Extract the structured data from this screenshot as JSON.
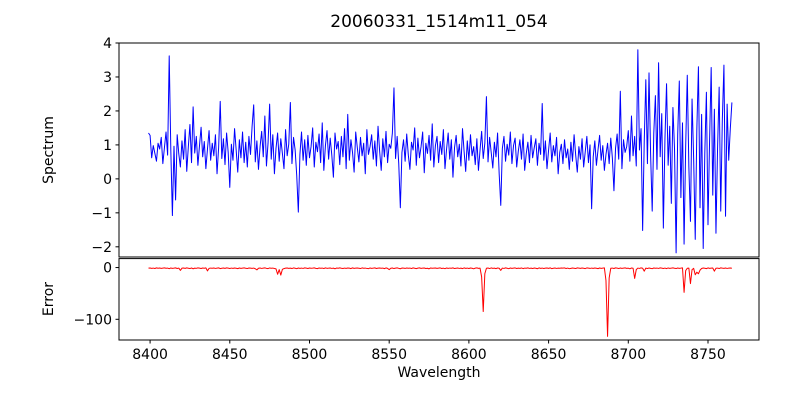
{
  "figure": {
    "title": "20060331_1514m11_054",
    "xlabel": "Wavelength",
    "background": "#ffffff",
    "axis_color": "#000000"
  },
  "chart_data": [
    {
      "type": "line",
      "series_name": "spectrum",
      "ylabel": "Spectrum",
      "color": "#0000ff",
      "xlim": [
        8380.5,
        8782.0
      ],
      "ylim": [
        -2.3,
        4.0
      ],
      "grid": false,
      "legend": null,
      "yticks": [
        {
          "v": 4,
          "label": "4"
        },
        {
          "v": 3,
          "label": "3"
        },
        {
          "v": 2,
          "label": "2"
        },
        {
          "v": 1,
          "label": "1"
        },
        {
          "v": 0,
          "label": "0"
        },
        {
          "v": -1,
          "label": "−1"
        },
        {
          "v": -2,
          "label": "−2"
        }
      ],
      "xticks": [],
      "x_start": 8399,
      "x_step": 1,
      "values": [
        1.35,
        1.28,
        0.62,
        0.98,
        0.75,
        0.52,
        1.05,
        0.88,
        1.22,
        0.45,
        0.92,
        1.38,
        0.7,
        3.62,
        0.85,
        -1.08,
        0.96,
        -0.62,
        1.3,
        0.74,
        0.35,
        1.12,
        0.58,
        1.45,
        0.22,
        0.95,
        1.6,
        0.48,
        2.12,
        0.76,
        1.25,
        0.4,
        0.98,
        1.52,
        0.65,
        1.1,
        0.3,
        0.88,
        1.42,
        0.55,
        1.05,
        0.68,
        1.3,
        0.15,
        0.92,
        2.28,
        0.6,
        1.18,
        0.42,
        1.35,
        0.78,
        -0.25,
        1.02,
        0.55,
        1.48,
        0.85,
        0.2,
        1.15,
        0.62,
        1.38,
        0.48,
        1.08,
        0.35,
        1.25,
        0.72,
        1.55,
        2.18,
        0.5,
        1.12,
        0.28,
        0.95,
        1.4,
        0.65,
        1.85,
        0.38,
        1.05,
        2.2,
        0.58,
        1.3,
        0.15,
        0.9,
        1.35,
        0.52,
        1.18,
        0.75,
        0.3,
        1.45,
        0.68,
        1.02,
        2.25,
        0.45,
        1.22,
        0.85,
        0.1,
        -0.98,
        0.72,
        1.38,
        0.55,
        1.15,
        0.4,
        1.28,
        0.62,
        0.95,
        1.5,
        0.35,
        1.08,
        0.8,
        1.32,
        0.48,
        1.65,
        0.25,
        0.98,
        1.42,
        0.58,
        1.2,
        0.7,
        0.05,
        1.35,
        0.88,
        1.1,
        0.42,
        1.25,
        0.65,
        1.48,
        0.3,
        1.9,
        0.55,
        1.15,
        0.78,
        0.2,
        1.38,
        0.92,
        0.5,
        1.22,
        0.68,
        1.05,
        0.15,
        1.45,
        0.72,
        0.95,
        1.3,
        0.58,
        1.12,
        0.38,
        1.55,
        0.82,
        0.25,
        1.18,
        0.65,
        1.4,
        0.48,
        1.02,
        0.9,
        1.35,
        2.68,
        0.6,
        1.25,
        0.45,
        -0.85,
        0.78,
        1.15,
        0.52,
        1.32,
        0.7,
        0.28,
        1.08,
        0.85,
        1.5,
        0.4,
        1.2,
        0.62,
        0.95,
        1.38,
        0.18,
        1.05,
        0.75,
        1.28,
        0.55,
        1.62,
        0.35,
        0.98,
        1.25,
        0.48,
        1.1,
        0.72,
        1.45,
        0.3,
        0.88,
        1.35,
        0.58,
        1.15,
        0.05,
        0.92,
        1.28,
        0.65,
        1.02,
        0.38,
        1.48,
        0.8,
        0.22,
        1.12,
        0.55,
        1.3,
        0.68,
        0.95,
        0.42,
        1.18,
        0.25,
        0.85,
        1.4,
        0.6,
        1.05,
        2.42,
        0.5,
        1.22,
        0.78,
        0.32,
        1.08,
        0.65,
        1.35,
        0.15,
        -0.78,
        0.9,
        1.25,
        0.52,
        1.02,
        0.7,
        1.38,
        0.45,
        0.98,
        1.2,
        0.35,
        0.82,
        1.15,
        0.58,
        1.32,
        0.25,
        0.75,
        1.08,
        0.48,
        1.28,
        0.62,
        0.92,
        1.18,
        0.4,
        1.05,
        0.72,
        2.22,
        0.55,
        1.12,
        0.3,
        0.85,
        1.35,
        0.5,
        0.98,
        0.68,
        1.22,
        0.15,
        0.78,
        1.02,
        0.45,
        1.15,
        0.62,
        0.88,
        0.28,
        1.08,
        0.52,
        1.3,
        0.7,
        0.2,
        0.95,
        0.58,
        1.18,
        0.35,
        0.8,
        1.25,
        0.48,
        1.0,
        -0.88,
        0.65,
        1.12,
        0.4,
        0.85,
        1.28,
        0.55,
        0.98,
        0.25,
        0.72,
        1.05,
        0.45,
        1.2,
        0.62,
        -0.35,
        0.9,
        1.32,
        0.58,
        2.58,
        0.3,
        1.15,
        0.78,
        0.95,
        1.42,
        0.52,
        1.85,
        0.68,
        1.25,
        0.38,
        3.8,
        0.85,
        1.48,
        -1.52,
        1.1,
        2.92,
        0.45,
        3.12,
        0.72,
        -0.95,
        1.35,
        2.45,
        0.28,
        3.42,
        0.65,
        1.92,
        -1.45,
        1.18,
        2.8,
        0.4,
        1.55,
        -0.72,
        2.1,
        0.88,
        -2.18,
        1.3,
        2.88,
        -0.55,
        1.65,
        -1.92,
        0.95,
        3.05,
        0.35,
        -1.25,
        2.35,
        0.6,
        -1.78,
        1.45,
        3.3,
        -0.85,
        1.9,
        -2.05,
        0.75,
        2.55,
        -1.35,
        1.15,
        3.28,
        -0.48,
        2.05,
        -1.6,
        0.9,
        2.7,
        -0.95,
        1.75,
        3.35,
        -1.1,
        2.2,
        0.55,
        1.48,
        2.25
      ]
    },
    {
      "type": "line",
      "series_name": "error",
      "ylabel": "Error",
      "color": "#ff0000",
      "xlim": [
        8380.5,
        8782.0
      ],
      "ylim": [
        -140.0,
        17.3
      ],
      "grid": false,
      "legend": null,
      "yticks": [
        {
          "v": 0,
          "label": "0"
        },
        {
          "v": -100,
          "label": "−100"
        }
      ],
      "xticks": [
        {
          "v": 8400,
          "label": "8400"
        },
        {
          "v": 8450,
          "label": "8450"
        },
        {
          "v": 8500,
          "label": "8500"
        },
        {
          "v": 8550,
          "label": "8550"
        },
        {
          "v": 8600,
          "label": "8600"
        },
        {
          "v": 8650,
          "label": "8650"
        },
        {
          "v": 8700,
          "label": "8700"
        },
        {
          "v": 8750,
          "label": "8750"
        }
      ],
      "x_start": 8399,
      "x_step": 1,
      "values": [
        -1.2,
        -0.8,
        -1.5,
        -1.0,
        -1.8,
        -0.6,
        -1.3,
        -0.9,
        -1.6,
        -1.1,
        -0.7,
        -1.4,
        -1.0,
        -2.2,
        -0.8,
        -1.5,
        -1.2,
        -0.6,
        -1.8,
        -1.0,
        -5.5,
        -1.2,
        -0.9,
        -1.6,
        -0.7,
        -1.3,
        -1.9,
        -0.8,
        -2.5,
        -1.1,
        -1.5,
        -0.6,
        -1.2,
        -1.8,
        -0.9,
        -1.4,
        -0.7,
        -6.5,
        -1.6,
        -1.0,
        -1.3,
        -0.8,
        -1.7,
        -1.1,
        -0.6,
        -2.0,
        -1.4,
        -0.9,
        -1.5,
        -0.7,
        -1.2,
        -1.8,
        -1.0,
        -1.6,
        -0.8,
        -1.3,
        -2.1,
        -0.9,
        -1.5,
        -1.1,
        -0.7,
        -1.4,
        -1.9,
        -0.8,
        -1.2,
        -1.6,
        -1.0,
        -2.3,
        -4.5,
        -1.3,
        -0.9,
        -1.7,
        -1.1,
        -0.6,
        -1.5,
        -2.0,
        -0.8,
        -1.4,
        -1.0,
        -1.8,
        -2.5,
        -13.0,
        -4.0,
        -14.5,
        -3.5,
        -2.0,
        -1.2,
        -0.8,
        -1.6,
        -1.1,
        -1.9,
        -0.7,
        -1.3,
        -2.2,
        -0.9,
        -1.5,
        -1.0,
        -1.7,
        -0.6,
        -1.2,
        -1.8,
        -0.9,
        -1.4,
        -1.1,
        -0.7,
        -1.6,
        -2.1,
        -0.8,
        -1.3,
        -1.0,
        -1.9,
        -0.6,
        -1.5,
        -1.2,
        -0.8,
        -1.7,
        -1.1,
        -2.4,
        -0.9,
        -1.4,
        -0.7,
        -1.3,
        -1.8,
        -1.0,
        -1.5,
        -0.8,
        -1.2,
        -2.0,
        -0.6,
        -1.6,
        -1.1,
        -0.9,
        -1.4,
        -1.9,
        -0.7,
        -1.3,
        -1.0,
        -1.7,
        -2.2,
        -0.8,
        -1.5,
        -1.1,
        -0.6,
        -1.8,
        -1.2,
        -0.9,
        -1.4,
        -1.0,
        -2.1,
        -0.7,
        -1.6,
        -4.0,
        -1.3,
        -0.8,
        -1.9,
        -1.1,
        -0.6,
        -1.5,
        -2.3,
        -0.9,
        -1.2,
        -1.7,
        -0.8,
        -1.4,
        -1.0,
        -1.9,
        -0.6,
        -1.3,
        -2.0,
        -1.1,
        -0.7,
        -1.6,
        -1.2,
        -0.9,
        -1.8,
        -1.4,
        -2.5,
        -0.8,
        -1.3,
        -1.0,
        -0.9,
        -1.5,
        -1.1,
        -0.7,
        -1.8,
        -1.2,
        -2.2,
        -0.8,
        -1.6,
        -1.0,
        -1.4,
        -0.6,
        -1.9,
        -1.3,
        -0.9,
        -1.7,
        -1.1,
        -2.0,
        -0.7,
        -1.5,
        -1.0,
        -1.8,
        -0.8,
        -1.3,
        -2.4,
        -1.1,
        -0.6,
        -1.6,
        -1.2,
        -18.0,
        -85.0,
        -12.0,
        -1.4,
        -0.9,
        -1.9,
        -0.7,
        -1.5,
        -1.1,
        -2.1,
        -0.8,
        -1.3,
        -5.5,
        -1.0,
        -1.7,
        -0.6,
        -1.4,
        -2.2,
        -0.9,
        -1.6,
        -1.1,
        -0.7,
        -1.8,
        -1.2,
        -1.5,
        -0.8,
        -2.0,
        -1.0,
        -1.4,
        -0.6,
        -1.7,
        -1.1,
        -1.9,
        -0.8,
        -1.3,
        -2.3,
        -0.7,
        -1.5,
        -1.0,
        -1.8,
        -1.2,
        -0.9,
        -1.6,
        -0.6,
        -2.1,
        -1.3,
        -0.8,
        -1.7,
        -1.1,
        -1.4,
        -0.9,
        -1.2,
        -0.7,
        -1.8,
        -1.0,
        -2.2,
        -1.5,
        -0.8,
        -1.3,
        -1.9,
        -0.6,
        -1.1,
        -1.6,
        -0.9,
        -1.4,
        -2.0,
        -0.7,
        -1.2,
        -1.7,
        -1.0,
        -1.5,
        -0.8,
        -1.3,
        -2.1,
        -0.9,
        -1.6,
        -1.1,
        -0.7,
        -25.0,
        -133.0,
        -20.0,
        -1.4,
        -1.0,
        -1.8,
        -0.6,
        -1.2,
        -1.9,
        -0.9,
        -1.5,
        -1.1,
        -0.7,
        -1.6,
        -1.2,
        -2.4,
        -0.8,
        -1.3,
        -21.0,
        -4.0,
        -1.0,
        -1.7,
        -0.6,
        -1.4,
        -7.0,
        -1.1,
        -1.9,
        -0.8,
        -1.5,
        -2.2,
        -0.9,
        -1.3,
        -1.0,
        -1.7,
        -0.7,
        -1.2,
        -1.8,
        -1.0,
        -2.0,
        -0.8,
        -1.5,
        -1.1,
        -0.6,
        -1.4,
        -1.9,
        -0.9,
        -1.6,
        -1.2,
        -0.7,
        -48.0,
        -6.0,
        -1.3,
        -1.0,
        -31.0,
        -4.0,
        -1.5,
        -14.0,
        -9.0,
        -12.0,
        -5.0,
        -1.8,
        -0.9,
        -1.3,
        -2.1,
        -0.7,
        -1.6,
        -1.1,
        -0.8,
        -7.0,
        -1.4,
        -1.0,
        -1.9,
        -0.6,
        -1.2,
        -1.5,
        -0.9,
        -1.7,
        -1.1,
        -0.8,
        -1.3
      ]
    }
  ]
}
